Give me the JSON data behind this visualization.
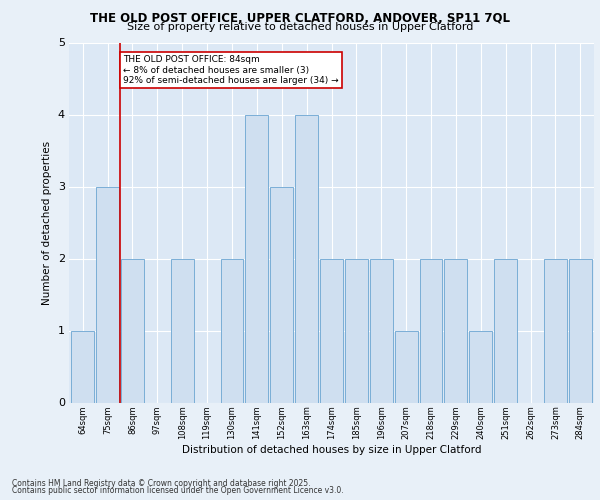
{
  "title_line1": "THE OLD POST OFFICE, UPPER CLATFORD, ANDOVER, SP11 7QL",
  "title_line2": "Size of property relative to detached houses in Upper Clatford",
  "xlabel": "Distribution of detached houses by size in Upper Clatford",
  "ylabel": "Number of detached properties",
  "categories": [
    "64sqm",
    "75sqm",
    "86sqm",
    "97sqm",
    "108sqm",
    "119sqm",
    "130sqm",
    "141sqm",
    "152sqm",
    "163sqm",
    "174sqm",
    "185sqm",
    "196sqm",
    "207sqm",
    "218sqm",
    "229sqm",
    "240sqm",
    "251sqm",
    "262sqm",
    "273sqm",
    "284sqm"
  ],
  "values": [
    1,
    3,
    2,
    0,
    2,
    0,
    2,
    4,
    3,
    4,
    2,
    2,
    2,
    1,
    2,
    2,
    1,
    2,
    0,
    2,
    2
  ],
  "bar_color": "#cfdff0",
  "bar_edge_color": "#7aaed6",
  "vline_x": 1.5,
  "vline_color": "#cc0000",
  "annotation_text": "THE OLD POST OFFICE: 84sqm\n← 8% of detached houses are smaller (3)\n92% of semi-detached houses are larger (34) →",
  "annotation_box_color": "#cc0000",
  "ylim": [
    0,
    5
  ],
  "yticks": [
    0,
    1,
    2,
    3,
    4,
    5
  ],
  "footer_line1": "Contains HM Land Registry data © Crown copyright and database right 2025.",
  "footer_line2": "Contains public sector information licensed under the Open Government Licence v3.0.",
  "bg_color": "#e8f0f8",
  "plot_bg_color": "#dce8f5",
  "title_fontsize": 8.5,
  "subtitle_fontsize": 8.0,
  "ylabel_fontsize": 7.5,
  "xlabel_fontsize": 7.5,
  "ytick_fontsize": 8,
  "xtick_fontsize": 6,
  "footer_fontsize": 5.5,
  "ann_fontsize": 6.5
}
